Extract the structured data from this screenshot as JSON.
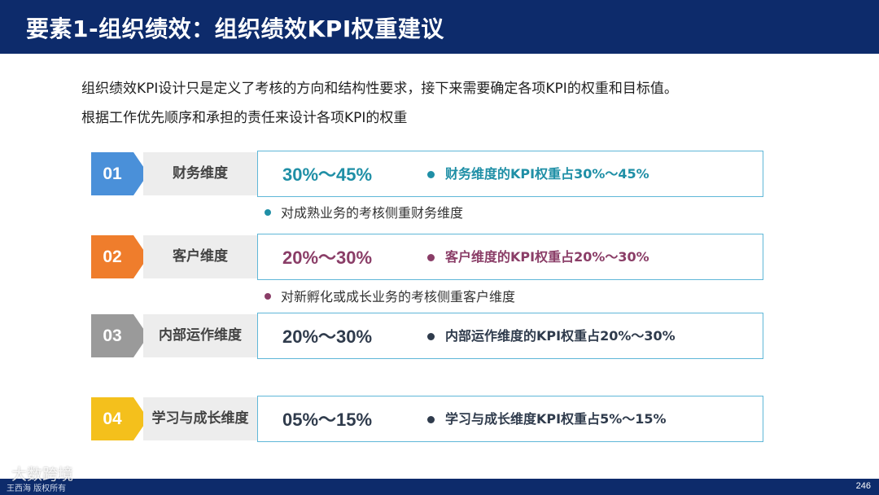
{
  "header": {
    "title": "要素1-组织绩效：组织绩效KPI权重建议"
  },
  "intro": {
    "line1": "组织绩效KPI设计只是定义了考核的方向和结构性要求，接下来需要确定各项KPI的权重和目标值。",
    "line2": "根据工作优先顺序和承担的责任来设计各项KPI的权重"
  },
  "colors": {
    "header_bg": "#0d2b6b",
    "box_border": "#5fb7d8"
  },
  "rows": [
    {
      "num": "01",
      "dimension": "财务维度",
      "range": "30%～45%",
      "desc": "财务维度的KPI权重占30%～45%",
      "badge_color": "#4a90d9",
      "range_color": "#1f8fa6",
      "desc_color": "#1f8fa6",
      "dot_color": "#1f8fa6"
    },
    {
      "num": "02",
      "dimension": "客户维度",
      "range": "20%～30%",
      "desc": "客户维度的KPI权重占20%～30%",
      "badge_color": "#ef7d2c",
      "range_color": "#8a3d67",
      "desc_color": "#8a3d67",
      "dot_color": "#8a3d67"
    },
    {
      "num": "03",
      "dimension": "内部运作维度",
      "range": "20%～30%",
      "desc": "内部运作维度的KPI权重占20%～30%",
      "badge_color": "#9a9a9a",
      "range_color": "#2f3b4c",
      "desc_color": "#2f3b4c",
      "dot_color": "#2f3b4c"
    },
    {
      "num": "04",
      "dimension": "学习与成长维度",
      "range": "05%～15%",
      "desc": "学习与成长维度KPI权重占5%～15%",
      "badge_color": "#f4c01c",
      "range_color": "#2f3b4c",
      "desc_color": "#2f3b4c",
      "dot_color": "#2f3b4c"
    }
  ],
  "notes": [
    {
      "text": "对成熟业务的考核侧重财务维度",
      "dot_color": "#1f8fa6"
    },
    {
      "text": "对新孵化或成长业务的考核侧重客户维度",
      "dot_color": "#8a3d67"
    }
  ],
  "footer": {
    "copyright": "王西海 版权所有",
    "page": "246"
  },
  "watermark": "大数跨境"
}
